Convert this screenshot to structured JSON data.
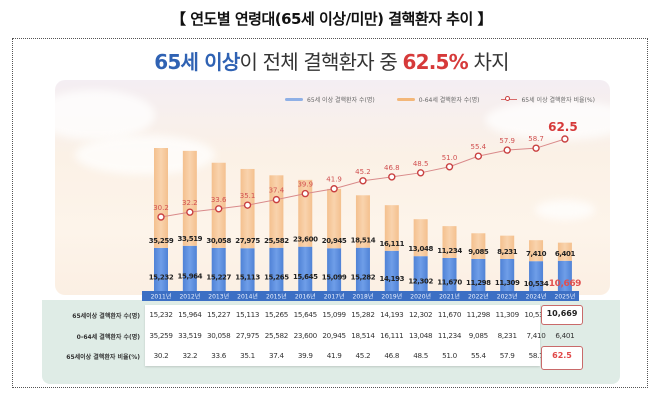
{
  "title": "【 연도별 연령대(65세 이상/미만) 결핵환자 추이 】",
  "subtitle": {
    "part1": "65세 이상",
    "part2": "이 전체 결핵환자 중 ",
    "part3": "62.5%",
    "part4": " 차지"
  },
  "colors": {
    "senior_bar": "#5b8ee0",
    "under65_bar": "#f6c99a",
    "ratio_line": "#c94040",
    "axis_band": "#3c6fc4",
    "highlight_red": "#e04848",
    "title_blue": "#2f62b3"
  },
  "table": {
    "row_labels": [
      "65세이상 결핵환자 수(명)",
      "0-64세 결핵환자 수(명)",
      "65세이상 결핵환자 비율(%)"
    ],
    "rows": [
      [
        "15,232",
        "15,964",
        "15,227",
        "15,113",
        "15,265",
        "15,645",
        "15,099",
        "15,282",
        "14,193",
        "12,302",
        "11,670",
        "11,298",
        "11,309",
        "10,534",
        "10,669"
      ],
      [
        "35,259",
        "33,519",
        "30,058",
        "27,975",
        "25,582",
        "23,600",
        "20,945",
        "18,514",
        "16,111",
        "13,048",
        "11,234",
        "9,085",
        "8,231",
        "7,410",
        "6,401"
      ],
      [
        "30.2",
        "32.2",
        "33.6",
        "35.1",
        "37.4",
        "39.9",
        "41.9",
        "45.2",
        "46.8",
        "48.5",
        "51.0",
        "55.4",
        "57.9",
        "58.7",
        "62.5"
      ]
    ]
  },
  "chart_data": {
    "type": "bar",
    "stacked": true,
    "title": "65세 이상이 전체 결핵환자 중 62.5% 차지",
    "categories": [
      "2011년",
      "2012년",
      "2013년",
      "2014년",
      "2015년",
      "2016년",
      "2017년",
      "2018년",
      "2019년",
      "2020년",
      "2021년",
      "2022년",
      "2023년",
      "2024년",
      "2025년"
    ],
    "series": [
      {
        "name": "65세 이상 결핵환자 수(명)",
        "type": "bar",
        "values": [
          15232,
          15964,
          15227,
          15113,
          15265,
          15645,
          15099,
          15282,
          14193,
          12302,
          11670,
          11298,
          11309,
          10534,
          10669
        ]
      },
      {
        "name": "0-64세 결핵환자 수(명)",
        "type": "bar",
        "values": [
          35259,
          33519,
          30058,
          27975,
          25582,
          23600,
          20945,
          18514,
          16111,
          13048,
          11234,
          9085,
          8231,
          7410,
          6401
        ]
      },
      {
        "name": "65세 이상 결핵환자 비율(%)",
        "type": "line",
        "values": [
          30.2,
          32.2,
          33.6,
          35.1,
          37.4,
          39.9,
          41.9,
          45.2,
          46.8,
          48.5,
          51.0,
          55.4,
          57.9,
          58.7,
          62.5
        ]
      }
    ],
    "bar_labels_senior": [
      "15,232",
      "15,964",
      "15,227",
      "15,113",
      "15,265",
      "15,645",
      "15,099",
      "15,282",
      "14,193",
      "12,302",
      "11,670",
      "11,298",
      "11,309",
      "10,534",
      "10,669"
    ],
    "bar_labels_under65": [
      "35,259",
      "33,519",
      "30,058",
      "27,975",
      "25,582",
      "23,600",
      "20,945",
      "18,514",
      "16,111",
      "13,048",
      "11,234",
      "9,085",
      "8,231",
      "7,410",
      "6,401"
    ],
    "line_labels": [
      "30.2",
      "32.2",
      "33.6",
      "35.1",
      "37.4",
      "39.9",
      "41.9",
      "45.2",
      "46.8",
      "48.5",
      "51.0",
      "55.4",
      "57.9",
      "58.7",
      "62.5"
    ],
    "legend": [
      "65세 이상 결핵환자 수(명)",
      "0-64세 결핵환자 수(명)",
      "65세 이상 결핵환자 비율(%)"
    ],
    "legend_position": "top-right",
    "xlabel": "",
    "ylabel": "",
    "grid": false
  }
}
